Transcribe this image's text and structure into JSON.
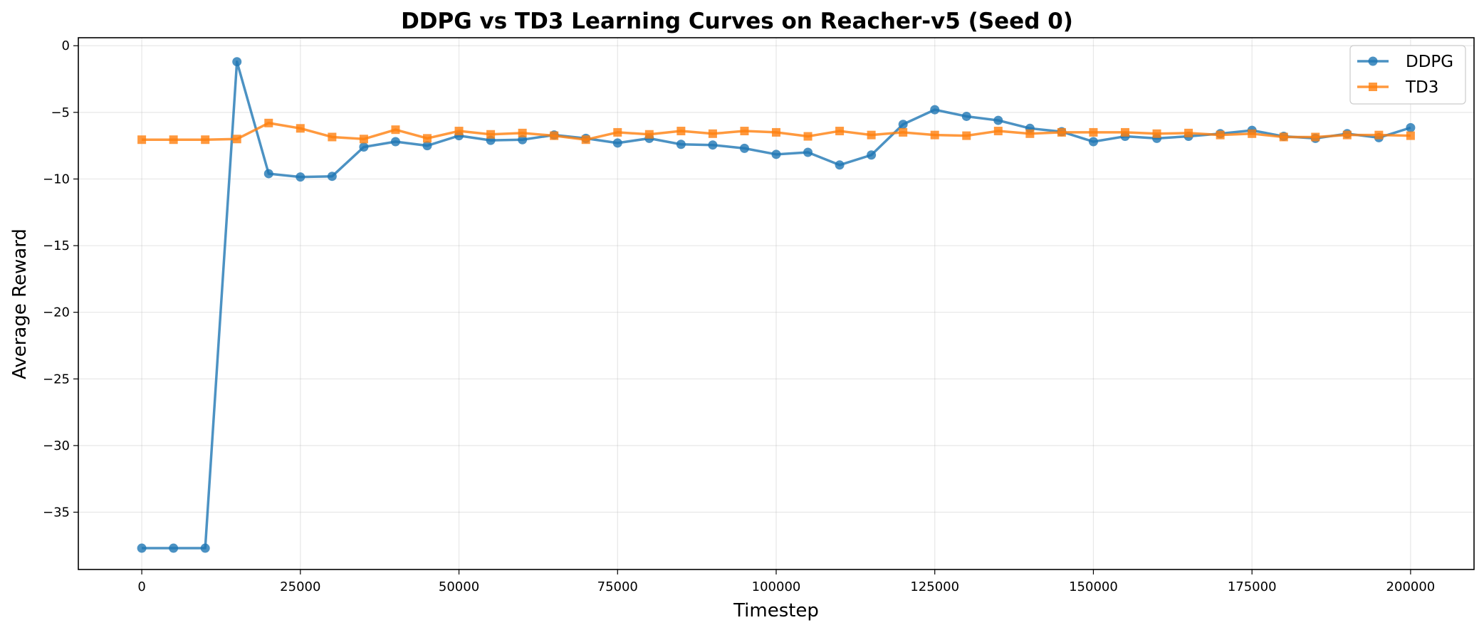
{
  "chart_data": {
    "type": "line",
    "title": "DDPG vs TD3 Learning Curves on Reacher-v5 (Seed 0)",
    "xlabel": "Timestep",
    "ylabel": "Average Reward",
    "xlim": [
      -10000,
      210000
    ],
    "ylim": [
      -39.3,
      0.6
    ],
    "x_ticks": [
      0,
      25000,
      50000,
      75000,
      100000,
      125000,
      150000,
      175000,
      200000
    ],
    "x_tick_labels": [
      "0",
      "25000",
      "50000",
      "75000",
      "100000",
      "125000",
      "150000",
      "175000",
      "200000"
    ],
    "y_ticks": [
      0,
      -5,
      -10,
      -15,
      -20,
      -25,
      -30,
      -35
    ],
    "y_tick_labels": [
      "0",
      "−5",
      "−10",
      "−15",
      "−20",
      "−25",
      "−30",
      "−35"
    ],
    "grid": true,
    "legend_position": "top-right",
    "x": [
      0,
      5000,
      10000,
      15000,
      20000,
      25000,
      30000,
      35000,
      40000,
      45000,
      50000,
      55000,
      60000,
      65000,
      70000,
      75000,
      80000,
      85000,
      90000,
      95000,
      100000,
      105000,
      110000,
      115000,
      120000,
      125000,
      130000,
      135000,
      140000,
      145000,
      150000,
      155000,
      160000,
      165000,
      170000,
      175000,
      180000,
      185000,
      190000,
      195000,
      200000
    ],
    "series": [
      {
        "name": "DDPG",
        "color": "#1f77b4",
        "marker": "circle",
        "values": [
          -37.7,
          -37.7,
          -37.7,
          -1.2,
          -9.6,
          -9.85,
          -9.8,
          -7.6,
          -7.2,
          -7.5,
          -6.75,
          -7.1,
          -7.05,
          -6.7,
          -6.95,
          -7.3,
          -6.95,
          -7.4,
          -7.45,
          -7.7,
          -8.15,
          -8.0,
          -8.95,
          -8.2,
          -5.9,
          -4.8,
          -5.3,
          -5.6,
          -6.2,
          -6.45,
          -7.2,
          -6.8,
          -6.95,
          -6.8,
          -6.6,
          -6.35,
          -6.8,
          -6.95,
          -6.6,
          -6.9,
          -6.15
        ]
      },
      {
        "name": "TD3",
        "color": "#ff7f0e",
        "marker": "square",
        "values": [
          -7.05,
          -7.05,
          -7.05,
          -7.0,
          -5.8,
          -6.2,
          -6.85,
          -7.0,
          -6.3,
          -6.95,
          -6.4,
          -6.65,
          -6.55,
          -6.75,
          -7.05,
          -6.5,
          -6.65,
          -6.4,
          -6.6,
          -6.4,
          -6.5,
          -6.8,
          -6.4,
          -6.7,
          -6.5,
          -6.7,
          -6.75,
          -6.4,
          -6.6,
          -6.5,
          -6.5,
          -6.5,
          -6.6,
          -6.55,
          -6.7,
          -6.6,
          -6.85,
          -6.85,
          -6.7,
          -6.7,
          -6.75
        ]
      }
    ]
  }
}
